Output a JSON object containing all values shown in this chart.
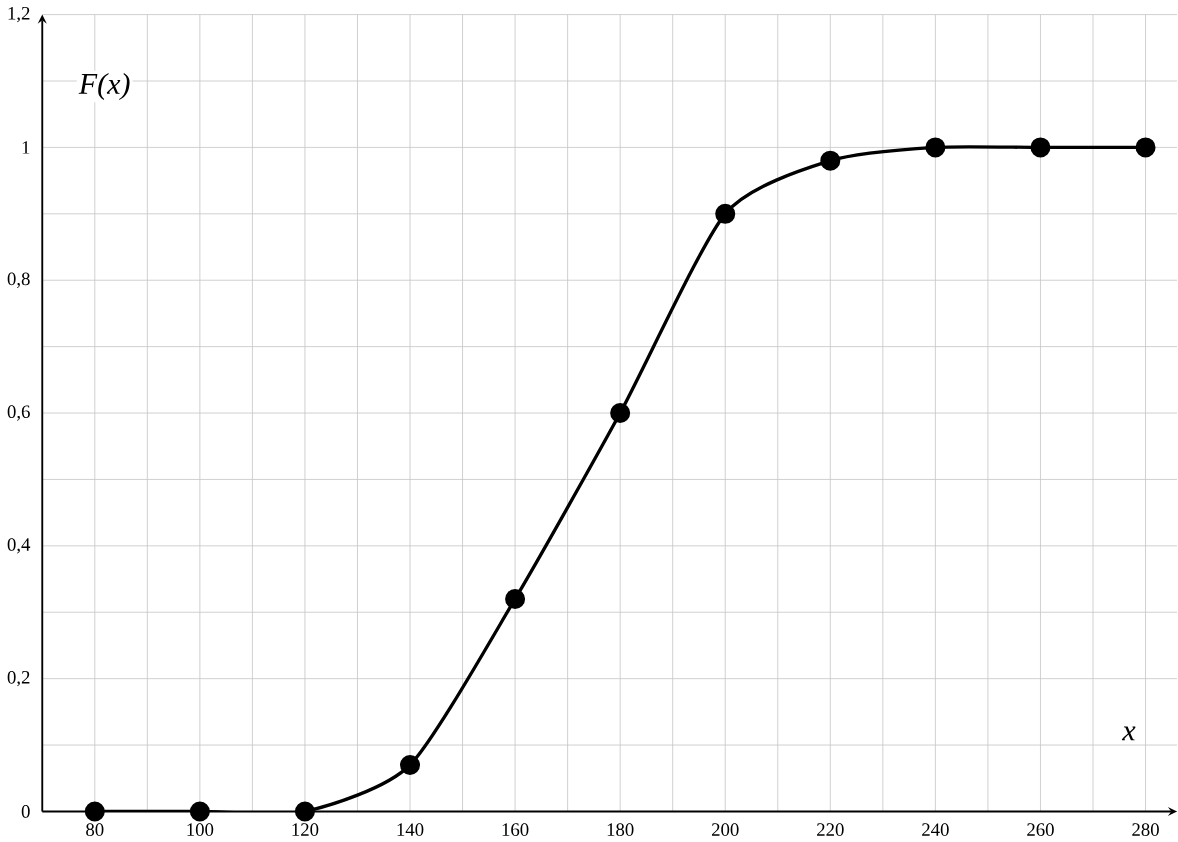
{
  "chart_data": {
    "type": "line",
    "xlabel": "x",
    "ylabel": "F(x)",
    "x": [
      80,
      100,
      120,
      140,
      160,
      180,
      200,
      220,
      240,
      260,
      280
    ],
    "series": [
      {
        "color": "#000000",
        "values": [
          0,
          0,
          0,
          0.07,
          0.32,
          0.6,
          0.9,
          0.98,
          1,
          1,
          1
        ]
      }
    ],
    "xlim": [
      70,
      286
    ],
    "ylim": [
      0,
      1.2
    ],
    "xticks": [
      80,
      100,
      120,
      140,
      160,
      180,
      200,
      220,
      240,
      260,
      280
    ],
    "yticks": [
      0,
      {
        "value": 0.2,
        "label": "0,2"
      },
      {
        "value": 0.4,
        "label": "0,4"
      },
      {
        "value": 0.6,
        "label": "0,6"
      },
      {
        "value": 0.8,
        "label": "0,8"
      },
      1,
      {
        "value": 1.2,
        "label": "1,2"
      }
    ],
    "grid": true,
    "marker": "circle",
    "line_style": "solid"
  }
}
